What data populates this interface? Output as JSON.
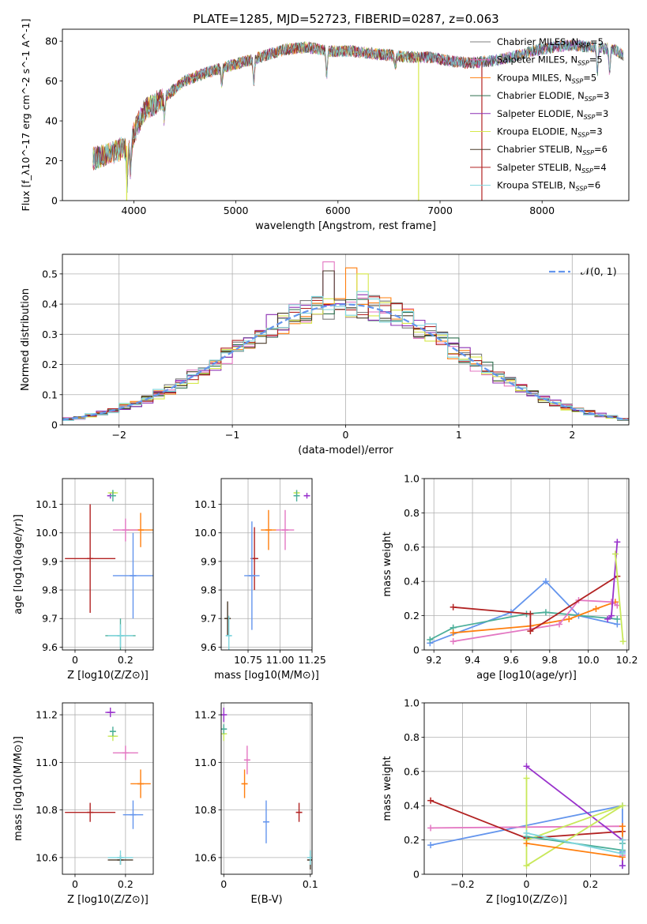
{
  "figure": {
    "title": "PLATE=1285, MJD=52723, FIBERID=0287, z=0.063"
  },
  "colors": {
    "Chabrier MILES": "#7f7f7f",
    "Salpeter MILES": "#e377c2",
    "Kroupa MILES": "#ff7f0e",
    "Chabrier ELODIE": "#2f6f4f",
    "Salpeter ELODIE": "#8c2fb3",
    "Kroupa ELODIE": "#d6e84a",
    "Chabrier STELIB": "#4a3b2a",
    "Salpeter STELIB": "#b22222",
    "Kroupa STELIB": "#7fd6de",
    "series_blue": "#6495ed",
    "series_orange": "#ff7f0e",
    "series_pink": "#e377c2",
    "series_purple": "#9932cc",
    "series_lime": "#c8e85a",
    "series_darkred": "#b22222",
    "series_teal": "#4caf9a",
    "normal": "#6495ed"
  },
  "chart_data": [
    {
      "id": "spectrum",
      "type": "line",
      "xlabel": "wavelength [Angstrom, rest frame]",
      "ylabel": "Flux [f_λ10^-17 erg cm^-2 s^-1 A^-1]",
      "xlim": [
        3300,
        8850
      ],
      "ylim": [
        0,
        86
      ],
      "xticks": [
        4000,
        5000,
        6000,
        7000,
        8000
      ],
      "yticks": [
        0,
        20,
        40,
        60,
        80
      ],
      "grid": false,
      "legend_position": "top-right",
      "legend": [
        {
          "label": "Chabrier MILES, N_SSP=5",
          "color_key": "Chabrier MILES"
        },
        {
          "label": "Salpeter MILES, N_SSP=5",
          "color_key": "Salpeter MILES"
        },
        {
          "label": "Kroupa MILES, N_SSP=5",
          "color_key": "Kroupa MILES"
        },
        {
          "label": "Chabrier ELODIE, N_SSP=3",
          "color_key": "Chabrier ELODIE"
        },
        {
          "label": "Salpeter ELODIE, N_SSP=3",
          "color_key": "Salpeter ELODIE"
        },
        {
          "label": "Kroupa ELODIE, N_SSP=3",
          "color_key": "Kroupa ELODIE"
        },
        {
          "label": "Chabrier STELIB, N_SSP=6",
          "color_key": "Chabrier STELIB"
        },
        {
          "label": "Salpeter STELIB, N_SSP=4",
          "color_key": "Salpeter STELIB"
        },
        {
          "label": "Kroupa STELIB, N_SSP=6",
          "color_key": "Kroupa STELIB"
        }
      ],
      "continuum": {
        "x": [
          3600,
          3800,
          3950,
          4100,
          4300,
          4500,
          4700,
          4900,
          5100,
          5300,
          5500,
          5700,
          5900,
          6100,
          6300,
          6500,
          6700,
          6900,
          7100,
          7300,
          7500,
          7700,
          7900,
          8100,
          8300,
          8500,
          8700,
          8800
        ],
        "y": [
          21,
          24,
          28,
          45,
          52,
          60,
          64,
          67,
          70,
          73,
          76,
          77,
          75,
          75,
          74,
          73,
          72,
          72,
          70,
          69,
          70,
          72,
          75,
          77,
          78,
          77,
          76,
          73
        ]
      },
      "absorption_features": [
        {
          "x": 3933,
          "depth": 20
        },
        {
          "x": 3968,
          "depth": 15
        },
        {
          "x": 4300,
          "depth": 10
        },
        {
          "x": 4861,
          "depth": 8
        },
        {
          "x": 5175,
          "depth": 12
        },
        {
          "x": 5890,
          "depth": 12
        },
        {
          "x": 6563,
          "depth": 5
        },
        {
          "x": 8542,
          "depth": 12
        },
        {
          "x": 8662,
          "depth": 12
        }
      ],
      "dropouts": [
        {
          "x": 3930,
          "color_key": "Kroupa ELODIE"
        },
        {
          "x": 6790,
          "color_key": "Kroupa ELODIE"
        },
        {
          "x": 7410,
          "color_key": "Salpeter STELIB"
        }
      ]
    },
    {
      "id": "residual_histogram",
      "type": "step",
      "xlabel": "(data-model)/error",
      "ylabel": "Normed distribution",
      "xlim": [
        -2.5,
        2.5
      ],
      "ylim": [
        0,
        0.565
      ],
      "xticks": [
        -2,
        -1,
        0,
        1,
        2
      ],
      "yticks": [
        0.0,
        0.1,
        0.2,
        0.3,
        0.4,
        0.5
      ],
      "grid": true,
      "bin_width": 0.1,
      "legend_position": "top-right",
      "legend": [
        {
          "label": "𝒩(0, 1)",
          "color_key": "normal"
        }
      ],
      "normal_curve": {
        "mean": 0,
        "sigma": 1,
        "style": "dashed"
      },
      "series_colors": [
        "Chabrier MILES",
        "Salpeter MILES",
        "Kroupa MILES",
        "Chabrier ELODIE",
        "Salpeter ELODIE",
        "Kroupa ELODIE",
        "Chabrier STELIB",
        "Salpeter STELIB",
        "Kroupa STELIB"
      ],
      "peak_overrides": [
        {
          "series": 1,
          "bin_center": -0.15,
          "value": 0.54
        },
        {
          "series": 2,
          "bin_center": 0.05,
          "value": 0.52
        },
        {
          "series": 5,
          "bin_center": 0.15,
          "value": 0.5
        },
        {
          "series": 6,
          "bin_center": -0.15,
          "value": 0.51
        }
      ]
    },
    {
      "id": "age_vs_Z",
      "type": "errorbar",
      "xlabel": "Z [log10(Z/Z⊙)]",
      "ylabel": "age  [log10(age/yr)]",
      "xlim": [
        -0.05,
        0.31
      ],
      "ylim": [
        9.59,
        10.19
      ],
      "xticks": [
        0.0,
        0.2
      ],
      "yticks": [
        9.6,
        9.7,
        9.8,
        9.9,
        10.0,
        10.1
      ],
      "grid": true,
      "points": [
        {
          "color_key": "series_darkred",
          "x": 0.06,
          "xerr": 0.1,
          "y": 9.91,
          "yerr": 0.19
        },
        {
          "color_key": "series_blue",
          "x": 0.23,
          "xerr": 0.08,
          "y": 9.85,
          "yerr": 0.15
        },
        {
          "color_key": "series_orange",
          "x": 0.26,
          "xerr": 0.05,
          "y": 10.01,
          "yerr": 0.06
        },
        {
          "color_key": "series_pink",
          "x": 0.2,
          "xerr": 0.05,
          "y": 10.01,
          "yerr": 0.04
        },
        {
          "color_key": "series_purple",
          "x": 0.14,
          "xerr": 0.01,
          "y": 10.13,
          "yerr": 0.01
        },
        {
          "color_key": "series_lime",
          "x": 0.15,
          "xerr": 0.02,
          "y": 10.14,
          "yerr": 0.01
        },
        {
          "color_key": "series_teal",
          "x": 0.15,
          "xerr": 0.01,
          "y": 10.13,
          "yerr": 0.02
        },
        {
          "color_key": "series_teal",
          "x": 0.18,
          "xerr": 0.06,
          "y": 9.64,
          "yerr": 0.06
        },
        {
          "color_key": "Kroupa STELIB",
          "x": 0.18,
          "xerr": 0.05,
          "y": 9.64,
          "yerr": 0.04
        }
      ]
    },
    {
      "id": "age_vs_mass",
      "type": "errorbar",
      "xlabel": "mass [log10(M/M⊙)]",
      "ylabel": "",
      "xlim": [
        10.54,
        11.25
      ],
      "ylim": [
        9.59,
        10.19
      ],
      "xticks": [
        10.75,
        11.0,
        11.25
      ],
      "yticks": [
        9.6,
        9.7,
        9.8,
        9.9,
        10.0,
        10.1
      ],
      "grid": true,
      "points": [
        {
          "color_key": "series_darkred",
          "x": 10.8,
          "xerr": 0.03,
          "y": 9.91,
          "yerr": 0.11
        },
        {
          "color_key": "series_blue",
          "x": 10.78,
          "xerr": 0.06,
          "y": 9.85,
          "yerr": 0.19
        },
        {
          "color_key": "series_orange",
          "x": 10.91,
          "xerr": 0.06,
          "y": 10.01,
          "yerr": 0.07
        },
        {
          "color_key": "series_pink",
          "x": 11.04,
          "xerr": 0.07,
          "y": 10.01,
          "yerr": 0.07
        },
        {
          "color_key": "series_purple",
          "x": 11.21,
          "xerr": 0.02,
          "y": 10.13,
          "yerr": 0.01
        },
        {
          "color_key": "series_lime",
          "x": 11.13,
          "xerr": 0.02,
          "y": 10.14,
          "yerr": 0.01
        },
        {
          "color_key": "series_teal",
          "x": 11.13,
          "xerr": 0.01,
          "y": 10.13,
          "yerr": 0.02
        },
        {
          "color_key": "Chabrier STELIB",
          "x": 10.59,
          "xerr": 0.01,
          "y": 9.7,
          "yerr": 0.06
        },
        {
          "color_key": "Kroupa STELIB",
          "x": 10.6,
          "xerr": 0.02,
          "y": 9.64,
          "yerr": 0.07
        }
      ]
    },
    {
      "id": "mass_weight_vs_age",
      "type": "line",
      "xlabel": "age  [log10(age/yr)]",
      "ylabel": "mass weight",
      "xlim": [
        9.15,
        10.21
      ],
      "ylim": [
        0.0,
        1.0
      ],
      "xticks": [
        9.2,
        9.4,
        9.6,
        9.8,
        10.0,
        10.2
      ],
      "yticks": [
        0.0,
        0.2,
        0.4,
        0.6,
        0.8,
        1.0
      ],
      "grid": true,
      "series": [
        {
          "color_key": "series_blue",
          "x": [
            9.18,
            9.6,
            9.78,
            9.95,
            10.15
          ],
          "y": [
            0.04,
            0.22,
            0.4,
            0.2,
            0.15
          ]
        },
        {
          "color_key": "series_teal",
          "x": [
            9.18,
            9.3,
            9.68,
            9.78,
            10.15
          ],
          "y": [
            0.06,
            0.13,
            0.21,
            0.22,
            0.18
          ]
        },
        {
          "color_key": "series_orange",
          "x": [
            9.3,
            9.7,
            9.9,
            10.04,
            10.14
          ],
          "y": [
            0.1,
            0.14,
            0.18,
            0.24,
            0.28
          ]
        },
        {
          "color_key": "series_pink",
          "x": [
            9.3,
            9.85,
            9.95,
            10.12,
            10.15
          ],
          "y": [
            0.05,
            0.15,
            0.29,
            0.28,
            0.26
          ]
        },
        {
          "color_key": "series_darkred",
          "x": [
            9.3,
            9.7,
            9.7,
            10.15
          ],
          "y": [
            0.25,
            0.21,
            0.11,
            0.43
          ]
        },
        {
          "color_key": "series_purple",
          "x": [
            10.1,
            10.12,
            10.15
          ],
          "y": [
            0.18,
            0.2,
            0.63
          ]
        },
        {
          "color_key": "series_lime",
          "x": [
            10.14,
            10.18
          ],
          "y": [
            0.56,
            0.05
          ]
        }
      ]
    },
    {
      "id": "mass_vs_Z",
      "type": "errorbar",
      "xlabel": "Z [log10(Z/Z⊙)]",
      "ylabel": "mass [log10(M/M⊙)]",
      "xlim": [
        -0.05,
        0.31
      ],
      "ylim": [
        10.53,
        11.25
      ],
      "xticks": [
        0.0,
        0.2
      ],
      "yticks": [
        10.6,
        10.8,
        11.0,
        11.2
      ],
      "grid": true,
      "points": [
        {
          "color_key": "series_darkred",
          "x": 0.06,
          "xerr": 0.1,
          "y": 10.79,
          "yerr": 0.04
        },
        {
          "color_key": "series_blue",
          "x": 0.23,
          "xerr": 0.04,
          "y": 10.78,
          "yerr": 0.06
        },
        {
          "color_key": "series_orange",
          "x": 0.26,
          "xerr": 0.04,
          "y": 10.91,
          "yerr": 0.06
        },
        {
          "color_key": "series_pink",
          "x": 0.2,
          "xerr": 0.05,
          "y": 11.04,
          "yerr": 0.03
        },
        {
          "color_key": "series_purple",
          "x": 0.14,
          "xerr": 0.02,
          "y": 11.21,
          "yerr": 0.02
        },
        {
          "color_key": "series_lime",
          "x": 0.15,
          "xerr": 0.02,
          "y": 11.11,
          "yerr": 0.02
        },
        {
          "color_key": "series_teal",
          "x": 0.15,
          "xerr": 0.01,
          "y": 11.13,
          "yerr": 0.02
        },
        {
          "color_key": "Chabrier STELIB",
          "x": 0.18,
          "xerr": 0.05,
          "y": 10.59,
          "yerr": 0.02
        },
        {
          "color_key": "Kroupa STELIB",
          "x": 0.18,
          "xerr": 0.05,
          "y": 10.6,
          "yerr": 0.03
        }
      ]
    },
    {
      "id": "mass_vs_ebv",
      "type": "errorbar",
      "xlabel": "E(B-V)",
      "ylabel": "",
      "xlim": [
        -0.003,
        0.102
      ],
      "ylim": [
        10.53,
        11.25
      ],
      "xticks": [
        0.0,
        0.1
      ],
      "yticks": [
        10.6,
        10.8,
        11.0,
        11.2
      ],
      "grid": true,
      "points": [
        {
          "color_key": "series_darkred",
          "x": 0.087,
          "xerr": 0,
          "y": 10.79,
          "yerr": 0.04
        },
        {
          "color_key": "series_blue",
          "x": 0.049,
          "xerr": 0,
          "y": 10.75,
          "yerr": 0.09
        },
        {
          "color_key": "series_orange",
          "x": 0.024,
          "xerr": 0,
          "y": 10.91,
          "yerr": 0.06
        },
        {
          "color_key": "series_pink",
          "x": 0.027,
          "xerr": 0,
          "y": 11.01,
          "yerr": 0.06
        },
        {
          "color_key": "series_purple",
          "x": 0.0,
          "xerr": 0,
          "y": 11.2,
          "yerr": 0.03
        },
        {
          "color_key": "series_lime",
          "x": 0.0,
          "xerr": 0,
          "y": 11.12,
          "yerr": 0.03
        },
        {
          "color_key": "series_teal",
          "x": 0.0,
          "xerr": 0,
          "y": 11.14,
          "yerr": 0.02
        },
        {
          "color_key": "Chabrier STELIB",
          "x": 0.1,
          "xerr": 0,
          "y": 10.59,
          "yerr": 0.04
        },
        {
          "color_key": "Kroupa STELIB",
          "x": 0.1,
          "xerr": 0,
          "y": 10.6,
          "yerr": 0.03
        }
      ]
    },
    {
      "id": "mass_weight_vs_Z",
      "type": "line",
      "xlabel": "Z [log10(Z/Z⊙)]",
      "ylabel": "mass weight",
      "xlim": [
        -0.32,
        0.32
      ],
      "ylim": [
        0.0,
        1.0
      ],
      "xticks": [
        -0.2,
        0.0,
        0.2
      ],
      "yticks": [
        0.0,
        0.2,
        0.4,
        0.6,
        0.8,
        1.0
      ],
      "grid": true,
      "series": [
        {
          "color_key": "series_blue",
          "x": [
            -0.3,
            0.3,
            0.3,
            0.3
          ],
          "y": [
            0.17,
            0.4,
            0.05,
            0.13
          ]
        },
        {
          "color_key": "series_pink",
          "x": [
            -0.3,
            0.3,
            0.3
          ],
          "y": [
            0.27,
            0.28,
            0.11
          ]
        },
        {
          "color_key": "series_darkred",
          "x": [
            -0.3,
            0.0,
            0.3
          ],
          "y": [
            0.43,
            0.21,
            0.25
          ]
        },
        {
          "color_key": "series_purple",
          "x": [
            0.0,
            0.3,
            0.3
          ],
          "y": [
            0.63,
            0.2,
            0.05
          ]
        },
        {
          "color_key": "series_lime",
          "x": [
            0.0,
            0.0,
            0.3,
            0.0
          ],
          "y": [
            0.56,
            0.05,
            0.4,
            0.2
          ]
        },
        {
          "color_key": "series_orange",
          "x": [
            0.0,
            0.3,
            0.3
          ],
          "y": [
            0.18,
            0.1,
            0.28
          ]
        },
        {
          "color_key": "series_teal",
          "x": [
            0.0,
            0.3,
            0.3
          ],
          "y": [
            0.22,
            0.14,
            0.18
          ]
        },
        {
          "color_key": "Kroupa STELIB",
          "x": [
            0.0,
            0.3,
            0.3
          ],
          "y": [
            0.24,
            0.12,
            0.2
          ]
        }
      ]
    }
  ]
}
